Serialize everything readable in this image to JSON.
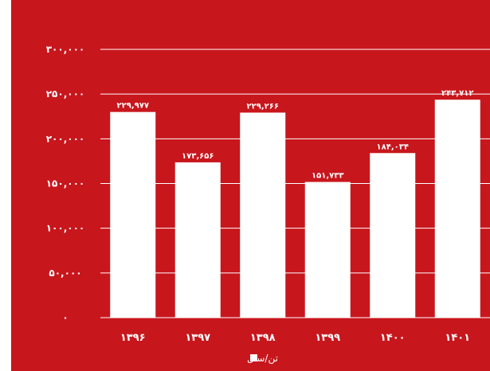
{
  "chart_data": {
    "type": "bar",
    "categories": [
      "۱۳۹۶",
      "۱۳۹۷",
      "۱۳۹۸",
      "۱۳۹۹",
      "۱۴۰۰",
      "۱۴۰۱"
    ],
    "values": [
      229977,
      173656,
      229266,
      151733,
      184034,
      243712
    ],
    "value_labels": [
      "۲۲۹,۹۷۷",
      "۱۷۳,۶۵۶",
      "۲۲۹,۲۶۶",
      "۱۵۱,۷۳۳",
      "۱۸۴,۰۳۴",
      "۲۴۳,۷۱۲"
    ],
    "yticks": [
      0,
      50000,
      100000,
      150000,
      200000,
      250000,
      300000
    ],
    "ytick_labels": [
      "۰",
      "۵۰,۰۰۰",
      "۱۰۰,۰۰۰",
      "۱۵۰,۰۰۰",
      "۲۰۰,۰۰۰",
      "۲۵۰,۰۰۰",
      "۳۰۰,۰۰۰"
    ],
    "ylim": [
      0,
      300000
    ],
    "legend": "تن/سال",
    "legend_placement": "bottom-center",
    "grid": true,
    "colors": {
      "background": "#c8161d",
      "bar": "#ffffff",
      "text": "#ffffff",
      "grid": "#ffffff"
    }
  }
}
